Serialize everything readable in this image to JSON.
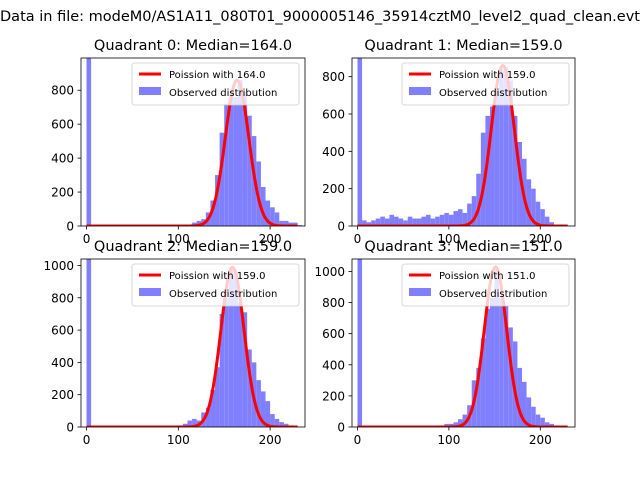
{
  "figure": {
    "suptitle": "Data in file: modeM0/AS1A11_080T01_9000005146_35914cztM0_level2_quad_clean.evt"
  },
  "colors": {
    "hist": "#7f7fff",
    "fit": "#ff0000"
  },
  "chart_data": [
    {
      "type": "bar",
      "title": "Quadrant 0: Median=164.0",
      "xlim": [
        -6,
        238
      ],
      "ylim": [
        0,
        990
      ],
      "xticks": [
        0,
        100,
        200
      ],
      "yticks": [
        0,
        200,
        400,
        600,
        800
      ],
      "legend": [
        "Poission with 164.0",
        "Observed distribution"
      ],
      "legend_loc": "upper right",
      "fit_mean": 164,
      "fit_peak": 860,
      "bin_width": 5,
      "bin_starts": [
        0,
        110,
        115,
        120,
        125,
        130,
        135,
        140,
        145,
        150,
        155,
        160,
        165,
        170,
        175,
        180,
        185,
        190,
        195,
        200,
        205,
        210,
        215,
        220,
        225,
        230
      ],
      "values": [
        990,
        0,
        20,
        30,
        40,
        80,
        150,
        300,
        550,
        720,
        760,
        760,
        860,
        790,
        650,
        530,
        380,
        230,
        150,
        110,
        80,
        30,
        30,
        20,
        20,
        5
      ]
    },
    {
      "type": "bar",
      "title": "Quadrant 1: Median=159.0",
      "xlim": [
        -6,
        238
      ],
      "ylim": [
        0,
        900
      ],
      "xticks": [
        0,
        100,
        200
      ],
      "yticks": [
        0,
        200,
        400,
        600,
        800
      ],
      "legend": [
        "Poission with 159.0",
        "Observed distribution"
      ],
      "legend_loc": "upper right",
      "fit_mean": 159,
      "fit_peak": 860,
      "bin_width": 5,
      "bin_starts": [
        0,
        5,
        10,
        15,
        20,
        25,
        30,
        35,
        40,
        45,
        50,
        55,
        60,
        65,
        70,
        75,
        80,
        85,
        90,
        95,
        100,
        105,
        110,
        115,
        120,
        125,
        130,
        135,
        140,
        145,
        150,
        155,
        160,
        165,
        170,
        175,
        180,
        185,
        190,
        195,
        200,
        205,
        210
      ],
      "values": [
        900,
        30,
        20,
        30,
        40,
        50,
        40,
        60,
        50,
        40,
        30,
        50,
        40,
        40,
        50,
        60,
        40,
        50,
        60,
        70,
        60,
        80,
        90,
        70,
        120,
        160,
        280,
        500,
        590,
        640,
        720,
        840,
        850,
        780,
        590,
        450,
        360,
        250,
        200,
        130,
        90,
        50,
        20
      ]
    },
    {
      "type": "bar",
      "title": "Quadrant 2: Median=159.0",
      "xlim": [
        -6,
        238
      ],
      "ylim": [
        0,
        1040
      ],
      "xticks": [
        0,
        100,
        200
      ],
      "yticks": [
        0,
        200,
        400,
        600,
        800,
        1000
      ],
      "legend": [
        "Poission with 159.0",
        "Observed distribution"
      ],
      "legend_loc": "upper right",
      "fit_mean": 159,
      "fit_peak": 990,
      "bin_width": 5,
      "bin_starts": [
        0,
        100,
        105,
        110,
        115,
        120,
        125,
        130,
        135,
        140,
        145,
        150,
        155,
        160,
        165,
        170,
        175,
        180,
        185,
        190,
        195,
        200,
        205,
        210,
        215,
        220
      ],
      "values": [
        1040,
        10,
        20,
        40,
        50,
        40,
        90,
        120,
        230,
        370,
        700,
        800,
        980,
        950,
        770,
        710,
        480,
        400,
        290,
        220,
        160,
        80,
        50,
        30,
        20,
        10
      ]
    },
    {
      "type": "bar",
      "title": "Quadrant 3: Median=151.0",
      "xlim": [
        -6,
        238
      ],
      "ylim": [
        0,
        1080
      ],
      "xticks": [
        0,
        100,
        200
      ],
      "yticks": [
        0,
        200,
        400,
        600,
        800,
        1000
      ],
      "legend": [
        "Poission with 151.0",
        "Observed distribution"
      ],
      "legend_loc": "upper right",
      "fit_mean": 151,
      "fit_peak": 1030,
      "bin_width": 5,
      "bin_starts": [
        0,
        85,
        90,
        95,
        100,
        105,
        110,
        115,
        120,
        125,
        130,
        135,
        140,
        145,
        150,
        155,
        160,
        165,
        170,
        175,
        180,
        185,
        190,
        195,
        200,
        205,
        210,
        215
      ],
      "values": [
        1080,
        10,
        10,
        20,
        20,
        30,
        50,
        80,
        140,
        300,
        380,
        570,
        760,
        830,
        1020,
        830,
        780,
        640,
        550,
        380,
        290,
        190,
        130,
        80,
        60,
        30,
        20,
        10
      ]
    }
  ]
}
